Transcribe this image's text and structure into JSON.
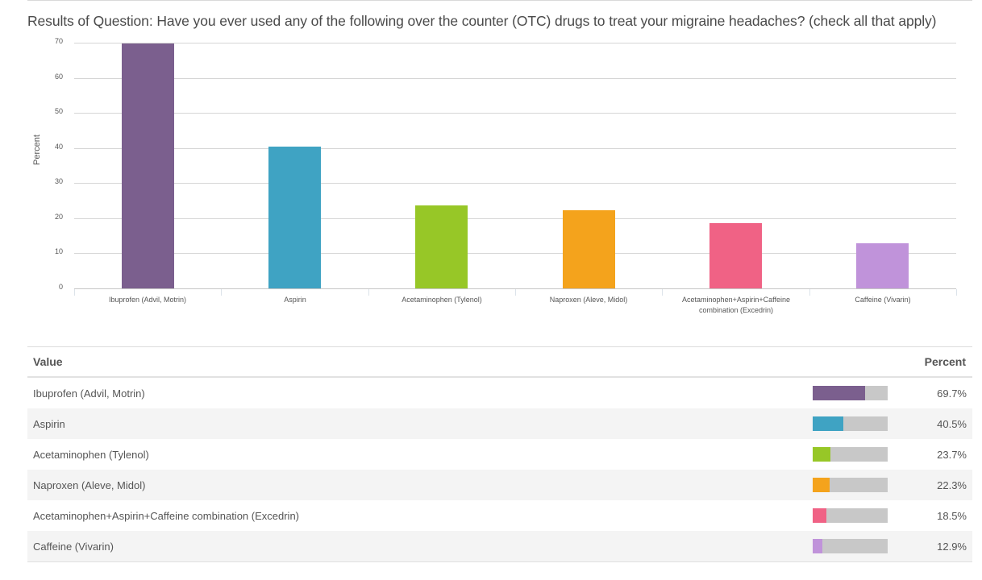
{
  "title": "Results of Question: Have you ever used any of the following over the counter (OTC) drugs to treat your migraine headaches? (check all that apply)",
  "chart_data": {
    "type": "bar",
    "title": "Results of Question: Have you ever used any of the following over the counter (OTC) drugs to treat your migraine headaches? (check all that apply)",
    "xlabel": "",
    "ylabel": "Percent",
    "ylim": [
      0,
      70
    ],
    "yticks": [
      0,
      10,
      20,
      30,
      40,
      50,
      60,
      70
    ],
    "grid": true,
    "legend": "none",
    "categories": [
      "Ibuprofen (Advil, Motrin)",
      "Aspirin",
      "Acetaminophen (Tylenol)",
      "Naproxen (Aleve, Midol)",
      "Acetaminophen+Aspirin+Caffeine combination (Excedrin)",
      "Caffeine (Vivarin)"
    ],
    "values": [
      69.7,
      40.5,
      23.7,
      22.3,
      18.5,
      12.9
    ],
    "colors": [
      "#7b5f8e",
      "#3fa3c3",
      "#97c727",
      "#f4a31c",
      "#f06285",
      "#c093da"
    ]
  },
  "chart": {
    "ylabel": "Percent",
    "yticks": [
      "0",
      "10",
      "20",
      "30",
      "40",
      "50",
      "60",
      "70"
    ],
    "xlabels": [
      [
        "Ibuprofen (Advil, Motrin)"
      ],
      [
        "Aspirin"
      ],
      [
        "Acetaminophen (Tylenol)"
      ],
      [
        "Naproxen (Aleve, Midol)"
      ],
      [
        "Acetaminophen+Aspirin+Caffeine",
        "combination (Excedrin)"
      ],
      [
        "Caffeine (Vivarin)"
      ]
    ]
  },
  "table": {
    "headers": {
      "value": "Value",
      "percent": "Percent"
    },
    "rows": [
      {
        "value": "Ibuprofen (Advil, Motrin)",
        "percent": "69.7%"
      },
      {
        "value": "Aspirin",
        "percent": "40.5%"
      },
      {
        "value": "Acetaminophen (Tylenol)",
        "percent": "23.7%"
      },
      {
        "value": "Naproxen (Aleve, Midol)",
        "percent": "22.3%"
      },
      {
        "value": "Acetaminophen+Aspirin+Caffeine combination (Excedrin)",
        "percent": "18.5%"
      },
      {
        "value": "Caffeine (Vivarin)",
        "percent": "12.9%"
      }
    ]
  }
}
